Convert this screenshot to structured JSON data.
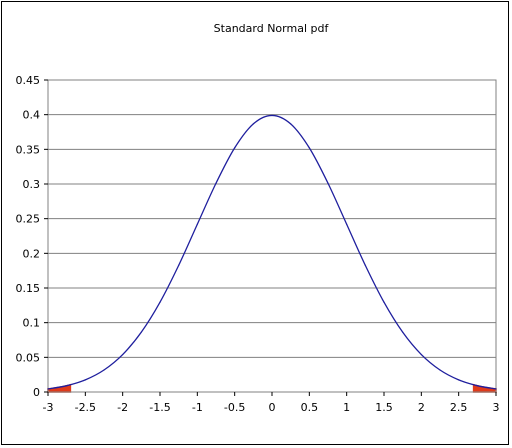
{
  "chart_data": {
    "type": "line",
    "title": "Standard Normal pdf",
    "xlabel": "",
    "ylabel": "",
    "xlim": [
      -3,
      3
    ],
    "ylim": [
      0,
      0.45
    ],
    "x_ticks": [
      "-3",
      "-2.5",
      "-2",
      "-1.5",
      "-1",
      "-0.5",
      "0",
      "0.5",
      "1",
      "1.5",
      "2",
      "2.5",
      "3"
    ],
    "y_ticks": [
      "0",
      "0.05",
      "0.1",
      "0.15",
      "0.2",
      "0.25",
      "0.3",
      "0.35",
      "0.4",
      "0.45"
    ],
    "grid": "horizontal",
    "legend": "none",
    "series": [
      {
        "x": [
          -3.0,
          -2.75,
          -2.5,
          -2.25,
          -2.0,
          -1.75,
          -1.5,
          -1.25,
          -1.0,
          -0.75,
          -0.5,
          -0.25,
          0.0,
          0.25,
          0.5,
          0.75,
          1.0,
          1.25,
          1.5,
          1.75,
          2.0,
          2.25,
          2.5,
          2.75,
          3.0
        ],
        "values": [
          0.0044,
          0.0091,
          0.0175,
          0.0317,
          0.054,
          0.0863,
          0.1295,
          0.1826,
          0.242,
          0.3011,
          0.3521,
          0.3867,
          0.3989,
          0.3867,
          0.3521,
          0.3011,
          0.242,
          0.1826,
          0.1295,
          0.0863,
          0.054,
          0.0317,
          0.0175,
          0.0091,
          0.0044
        ],
        "color": "#1f1f9e"
      }
    ],
    "shaded_regions": [
      {
        "from": -3.0,
        "to": -2.7,
        "color": "#e03a1a"
      },
      {
        "from": 2.7,
        "to": 3.0,
        "color": "#e03a1a"
      }
    ],
    "colors": {
      "plot_border": "#808080",
      "gridline": "#808080",
      "axis": "#000000"
    }
  }
}
